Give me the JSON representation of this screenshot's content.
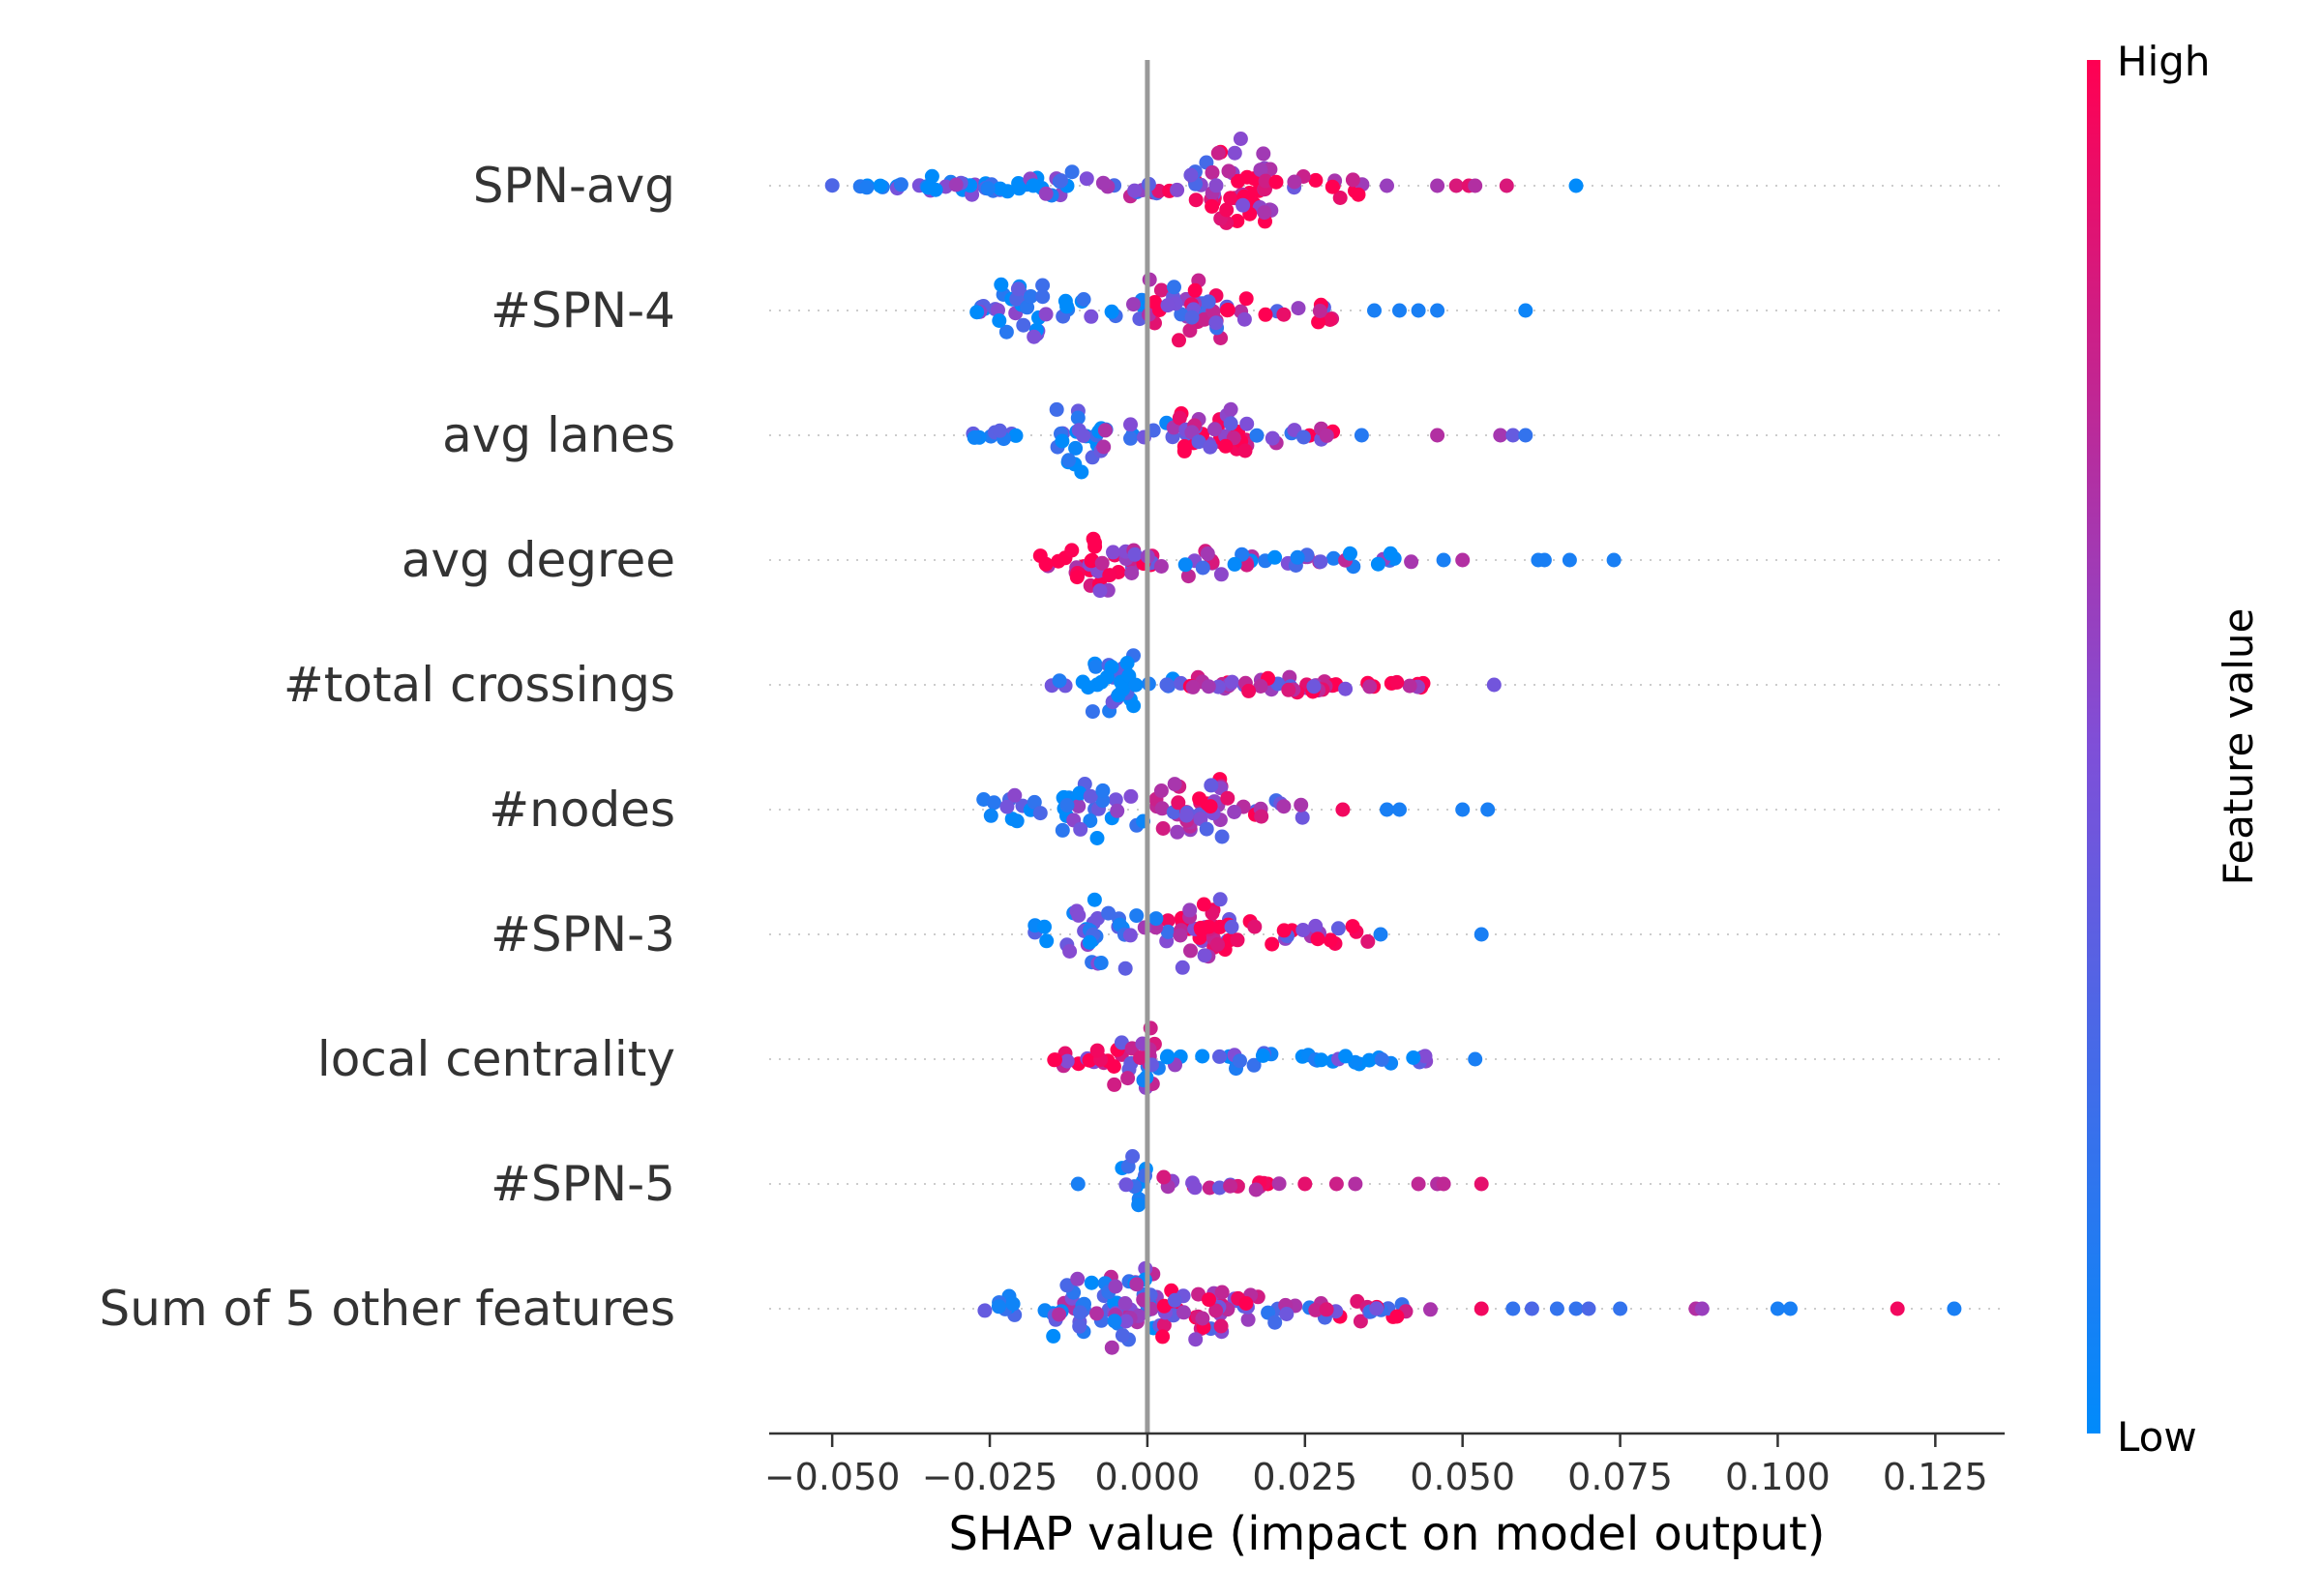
{
  "chart_data": {
    "type": "scatter",
    "subtype": "shap-beeswarm",
    "xlabel": "SHAP value (impact on model output)",
    "xlim": [
      -0.06,
      0.136
    ],
    "x_ticks": [
      -0.05,
      -0.025,
      0.0,
      0.025,
      0.05,
      0.075,
      0.1,
      0.125
    ],
    "x_tick_labels": [
      "−0.050",
      "−0.025",
      "0.000",
      "0.025",
      "0.050",
      "0.075",
      "0.100",
      "0.125"
    ],
    "zero_line": 0.0,
    "grid": false,
    "colorbar": {
      "label": "Feature value",
      "high_label": "High",
      "low_label": "Low",
      "high_color": "#ff0052",
      "mid_color": "#7f4fd8",
      "low_color": "#008bfb",
      "placement": "right"
    },
    "features": [
      {
        "name": "SPN-avg",
        "clusters": [
          [
            -0.05,
            -0.035,
            0.1,
            0.1,
            1
          ],
          [
            -0.035,
            -0.012,
            0.18,
            0.2,
            2
          ],
          [
            -0.012,
            0.002,
            0.45,
            0.35,
            1
          ],
          [
            0.002,
            0.01,
            0.7,
            0.6,
            1
          ],
          [
            0.01,
            0.02,
            0.9,
            1.0,
            3
          ],
          [
            0.02,
            0.035,
            0.85,
            0.3,
            1
          ]
        ],
        "outliers": [
          [
            0.038,
            0.6
          ],
          [
            0.046,
            0.65
          ],
          [
            0.049,
            0.85
          ],
          [
            0.051,
            0.9
          ],
          [
            0.052,
            0.7
          ],
          [
            0.057,
            0.85
          ],
          [
            0.068,
            0.0
          ]
        ]
      },
      {
        "name": "#SPN-4",
        "clusters": [
          [
            -0.032,
            -0.024,
            0.1,
            0.15,
            1
          ],
          [
            -0.024,
            -0.015,
            0.12,
            0.8,
            2
          ],
          [
            -0.015,
            0.0,
            0.2,
            0.25,
            1
          ],
          [
            0.0,
            0.012,
            0.6,
            0.6,
            3
          ],
          [
            0.012,
            0.03,
            0.75,
            0.3,
            1
          ]
        ],
        "outliers": [
          [
            0.036,
            0.1
          ],
          [
            0.04,
            0.1
          ],
          [
            0.043,
            0.1
          ],
          [
            0.046,
            0.1
          ],
          [
            0.06,
            0.05
          ]
        ]
      },
      {
        "name": "avg lanes",
        "clusters": [
          [
            -0.028,
            -0.016,
            0.12,
            0.15,
            1
          ],
          [
            -0.016,
            -0.007,
            0.08,
            0.8,
            2
          ],
          [
            -0.007,
            0.004,
            0.3,
            0.3,
            1
          ],
          [
            0.004,
            0.016,
            0.82,
            0.55,
            3
          ],
          [
            0.016,
            0.03,
            0.6,
            0.2,
            1
          ]
        ],
        "outliers": [
          [
            0.034,
            0.15
          ],
          [
            0.046,
            0.7
          ],
          [
            0.056,
            0.65
          ],
          [
            0.058,
            0.4
          ],
          [
            0.06,
            0.2
          ]
        ]
      },
      {
        "name": "avg degree",
        "clusters": [
          [
            -0.018,
            -0.012,
            0.95,
            0.25,
            1
          ],
          [
            -0.012,
            -0.006,
            0.92,
            0.7,
            3
          ],
          [
            -0.006,
            0.002,
            0.75,
            0.55,
            2
          ],
          [
            0.002,
            0.02,
            0.45,
            0.45,
            1
          ],
          [
            0.02,
            0.045,
            0.3,
            0.15,
            1
          ]
        ],
        "outliers": [
          [
            0.047,
            0.1
          ],
          [
            0.05,
            0.7
          ],
          [
            0.062,
            0.1
          ],
          [
            0.063,
            0.1
          ],
          [
            0.067,
            0.1
          ],
          [
            0.074,
            0.1
          ]
        ]
      },
      {
        "name": "#total crossings",
        "clusters": [
          [
            -0.016,
            -0.009,
            0.1,
            0.15,
            1
          ],
          [
            -0.009,
            -0.002,
            0.05,
            0.75,
            3
          ],
          [
            -0.002,
            0.006,
            0.3,
            0.15,
            1
          ],
          [
            0.006,
            0.03,
            0.75,
            0.2,
            2
          ],
          [
            0.03,
            0.045,
            0.9,
            0.12,
            1
          ]
        ],
        "outliers": [
          [
            0.055,
            0.45
          ]
        ]
      },
      {
        "name": "#nodes",
        "clusters": [
          [
            -0.026,
            -0.014,
            0.15,
            0.4,
            1
          ],
          [
            -0.014,
            -0.004,
            0.15,
            0.7,
            2
          ],
          [
            -0.004,
            0.004,
            0.4,
            0.5,
            1
          ],
          [
            0.004,
            0.012,
            0.75,
            0.8,
            3
          ],
          [
            0.012,
            0.025,
            0.6,
            0.3,
            1
          ]
        ],
        "outliers": [
          [
            0.031,
            0.95
          ],
          [
            0.038,
            0.1
          ],
          [
            0.04,
            0.1
          ],
          [
            0.05,
            0.1
          ],
          [
            0.054,
            0.1
          ]
        ]
      },
      {
        "name": "#SPN-3",
        "clusters": [
          [
            -0.018,
            -0.012,
            0.12,
            0.4,
            1
          ],
          [
            -0.012,
            -0.002,
            0.2,
            0.75,
            2
          ],
          [
            -0.002,
            0.005,
            0.5,
            0.5,
            1
          ],
          [
            0.005,
            0.014,
            0.8,
            0.75,
            3
          ],
          [
            0.014,
            0.035,
            0.7,
            0.3,
            1
          ]
        ],
        "outliers": [
          [
            0.037,
            0.1
          ],
          [
            0.053,
            0.1
          ]
        ]
      },
      {
        "name": "local centrality",
        "clusters": [
          [
            -0.018,
            -0.008,
            0.92,
            0.3,
            1
          ],
          [
            -0.008,
            -0.002,
            0.8,
            0.55,
            2
          ],
          [
            -0.002,
            0.002,
            0.4,
            0.85,
            3
          ],
          [
            0.002,
            0.02,
            0.15,
            0.25,
            1
          ],
          [
            0.02,
            0.045,
            0.15,
            0.15,
            1
          ]
        ],
        "outliers": [
          [
            0.052,
            0.1
          ]
        ]
      },
      {
        "name": "#SPN-5",
        "clusters": [
          [
            -0.004,
            0.0,
            0.1,
            0.95,
            2
          ],
          [
            0.002,
            0.01,
            0.85,
            0.2,
            1
          ],
          [
            0.01,
            0.023,
            0.85,
            0.15,
            1
          ]
        ],
        "outliers": [
          [
            -0.011,
            0.1
          ],
          [
            0.025,
            0.9
          ],
          [
            0.03,
            0.8
          ],
          [
            0.033,
            0.7
          ],
          [
            0.043,
            0.75
          ],
          [
            0.046,
            0.7
          ],
          [
            0.047,
            0.75
          ],
          [
            0.053,
            0.9
          ]
        ]
      },
      {
        "name": "Sum of 5 other features",
        "clusters": [
          [
            -0.027,
            -0.015,
            0.3,
            0.3,
            1
          ],
          [
            -0.015,
            0.002,
            0.3,
            0.8,
            3
          ],
          [
            0.002,
            0.018,
            0.75,
            0.65,
            2
          ],
          [
            0.018,
            0.035,
            0.55,
            0.35,
            1
          ],
          [
            0.035,
            0.05,
            0.65,
            0.15,
            1
          ]
        ],
        "outliers": [
          [
            0.053,
            0.95
          ],
          [
            0.058,
            0.2
          ],
          [
            0.061,
            0.3
          ],
          [
            0.065,
            0.2
          ],
          [
            0.068,
            0.2
          ],
          [
            0.07,
            0.3
          ],
          [
            0.075,
            0.2
          ],
          [
            0.087,
            0.7
          ],
          [
            0.088,
            0.6
          ],
          [
            0.1,
            0.1
          ],
          [
            0.102,
            0.1
          ],
          [
            0.119,
            0.95
          ],
          [
            0.128,
            0.1
          ]
        ]
      }
    ]
  }
}
